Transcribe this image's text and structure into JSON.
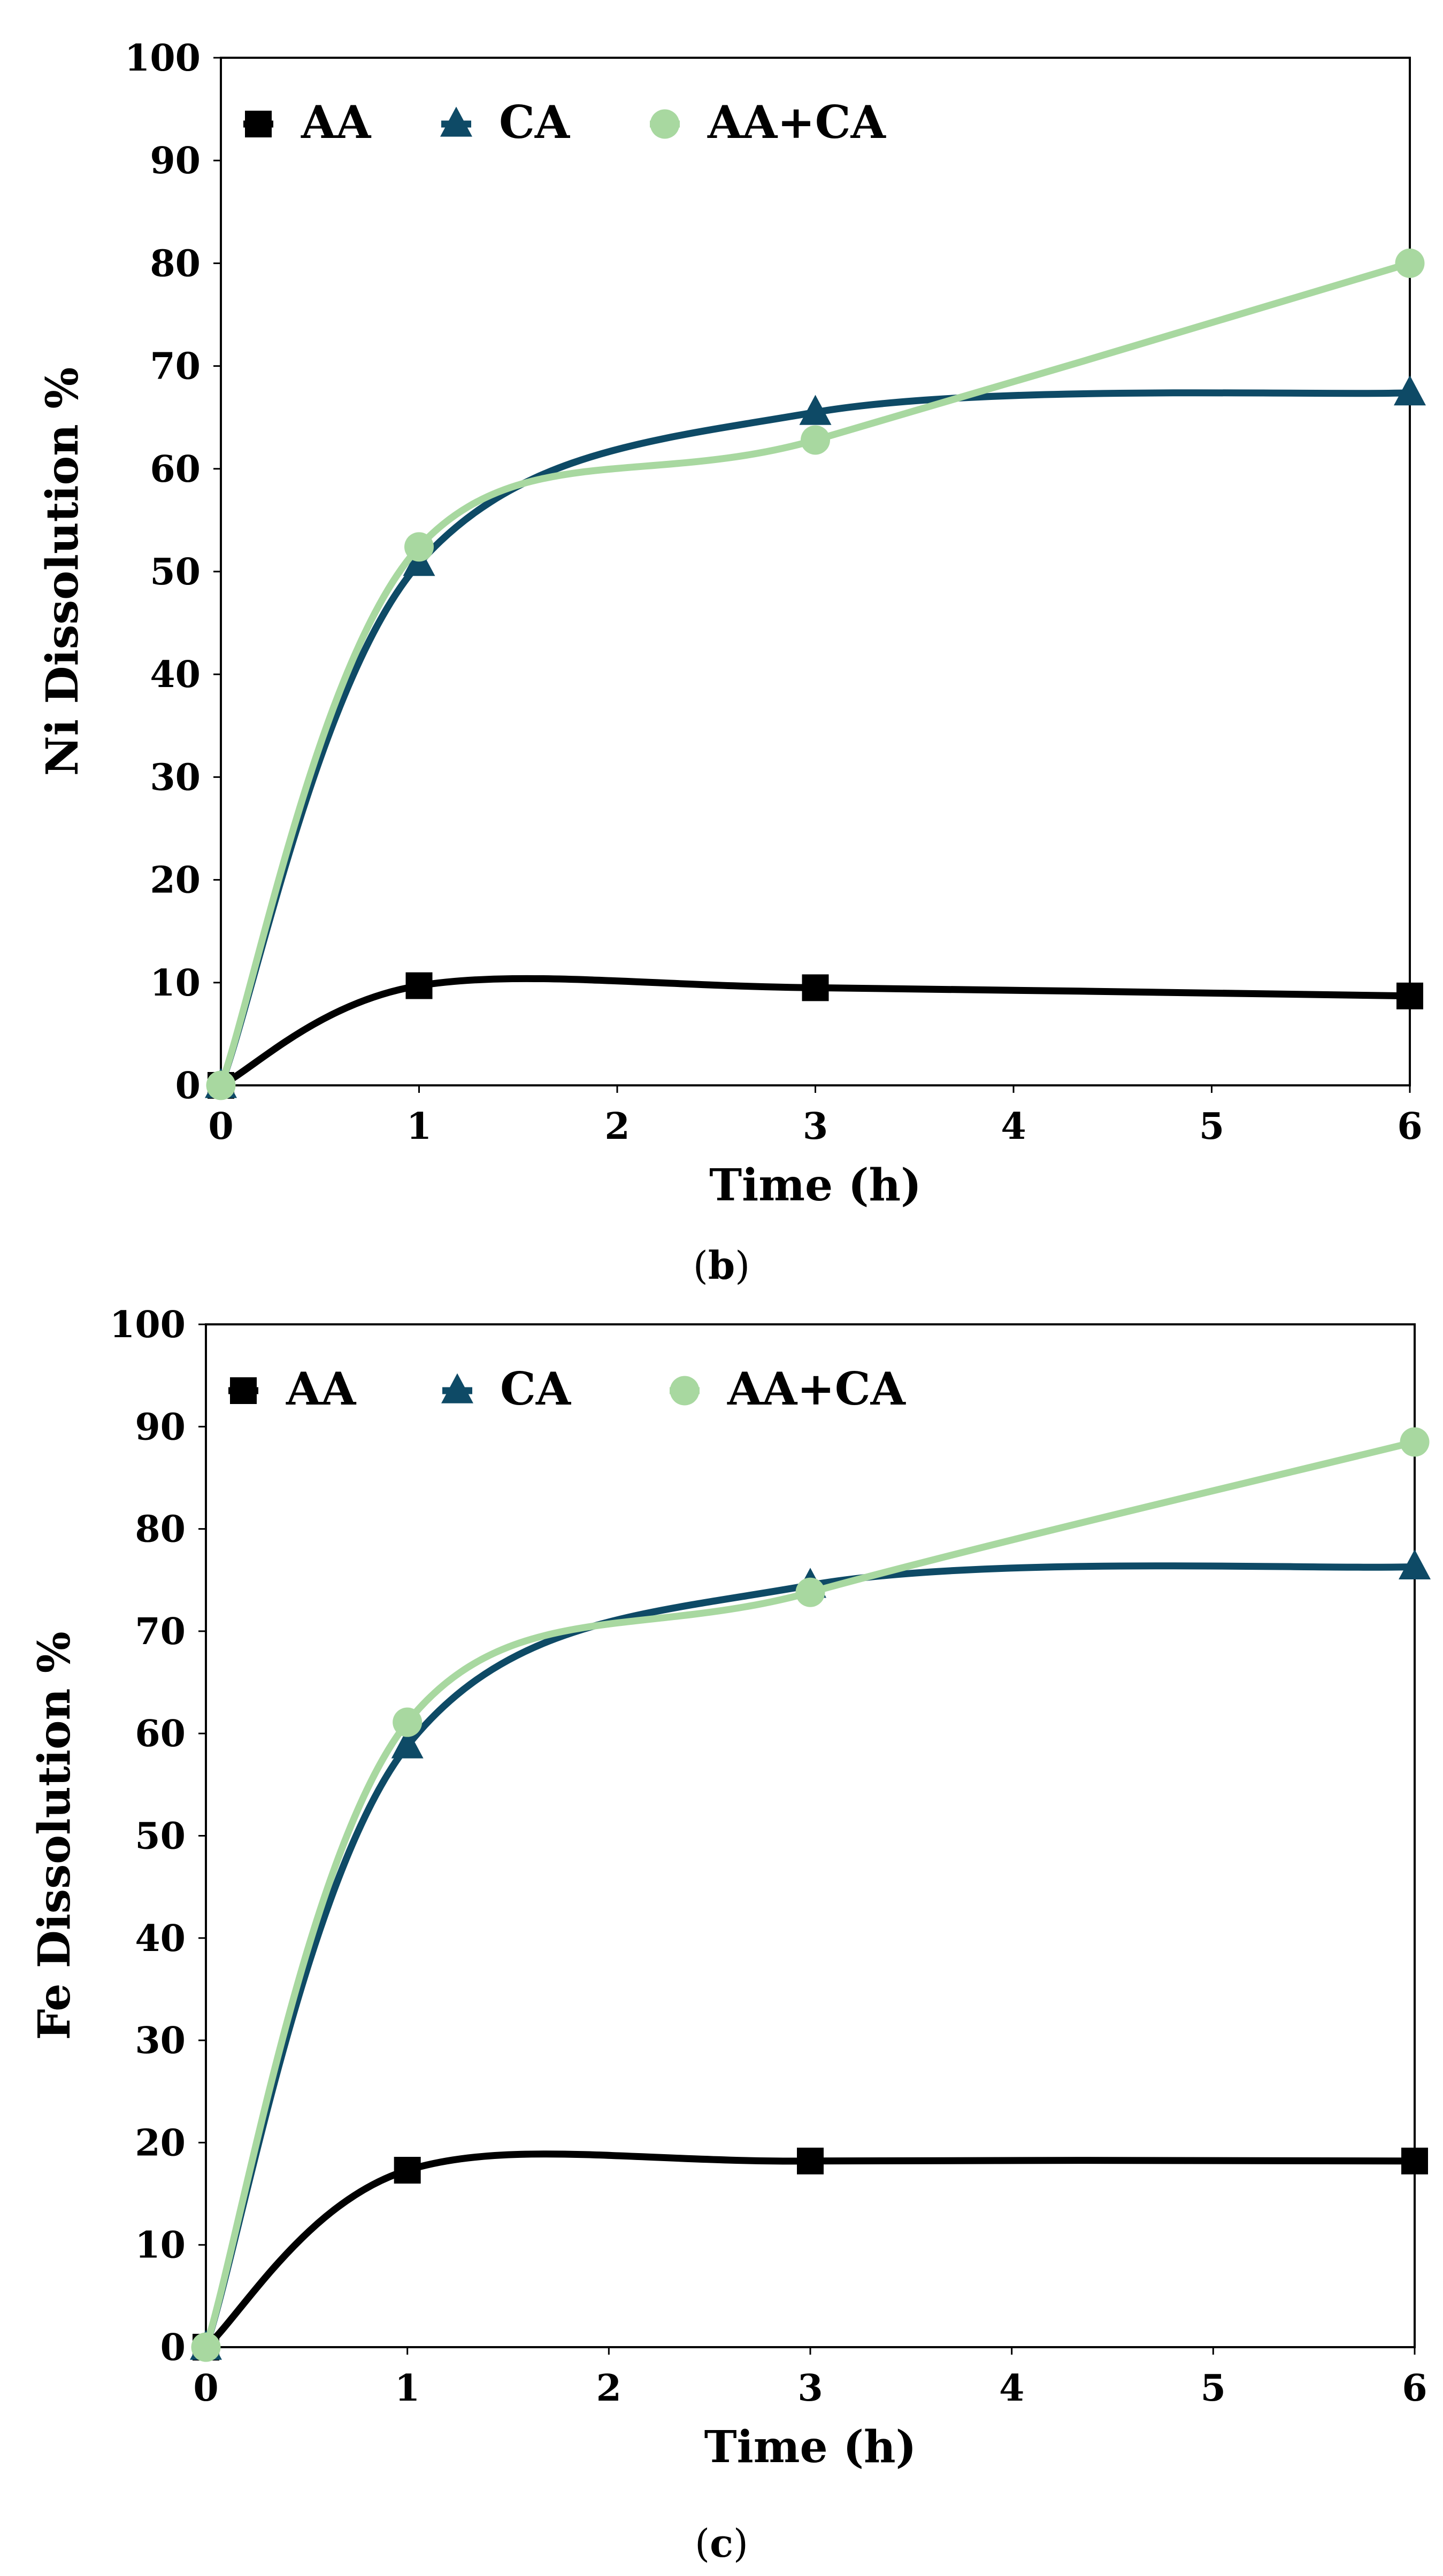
{
  "colors": {
    "AA": "#000000",
    "CA": "#0e4a66",
    "AA+CA": "#a8d8a0"
  },
  "chart_data": [
    {
      "type": "line",
      "panel_label": "b",
      "caption_open": "(",
      "caption_close": ")",
      "xlabel": "Time (h)",
      "ylabel": "Ni Dissolution %",
      "x_ticks": [
        "0",
        "1",
        "2",
        "3",
        "4",
        "5",
        "6"
      ],
      "y_ticks": [
        "0",
        "10",
        "20",
        "30",
        "40",
        "50",
        "60",
        "70",
        "80",
        "90",
        "100"
      ],
      "xlim": [
        0,
        6
      ],
      "ylim": [
        0,
        100
      ],
      "legend_position": "top-left",
      "series": [
        {
          "name": "AA",
          "marker": "square",
          "color": "#000000",
          "x": [
            0,
            1,
            3,
            6
          ],
          "y": [
            0,
            9.7,
            9.5,
            8.7
          ]
        },
        {
          "name": "CA",
          "marker": "triangle",
          "color": "#0e4a66",
          "x": [
            0,
            1,
            3,
            6
          ],
          "y": [
            0,
            50.8,
            65.5,
            67.4
          ]
        },
        {
          "name": "AA+CA",
          "marker": "circle",
          "color": "#a8d8a0",
          "x": [
            0,
            1,
            3,
            6
          ],
          "y": [
            0,
            52.4,
            62.8,
            80.0
          ]
        }
      ]
    },
    {
      "type": "line",
      "panel_label": "c",
      "caption_open": "(",
      "caption_close": ")",
      "xlabel": "Time (h)",
      "ylabel": "Fe Dissolution %",
      "x_ticks": [
        "0",
        "1",
        "2",
        "3",
        "4",
        "5",
        "6"
      ],
      "y_ticks": [
        "0",
        "10",
        "20",
        "30",
        "40",
        "50",
        "60",
        "70",
        "80",
        "90",
        "100"
      ],
      "xlim": [
        0,
        6
      ],
      "ylim": [
        0,
        100
      ],
      "legend_position": "top-left",
      "series": [
        {
          "name": "AA",
          "marker": "square",
          "color": "#000000",
          "x": [
            0,
            1,
            3,
            6
          ],
          "y": [
            0,
            17.3,
            18.2,
            18.2
          ]
        },
        {
          "name": "CA",
          "marker": "triangle",
          "color": "#0e4a66",
          "x": [
            0,
            1,
            3,
            6
          ],
          "y": [
            0,
            58.8,
            74.5,
            76.3
          ]
        },
        {
          "name": "AA+CA",
          "marker": "circle",
          "color": "#a8d8a0",
          "x": [
            0,
            1,
            3,
            6
          ],
          "y": [
            0,
            61.1,
            73.8,
            88.5
          ]
        }
      ]
    }
  ]
}
